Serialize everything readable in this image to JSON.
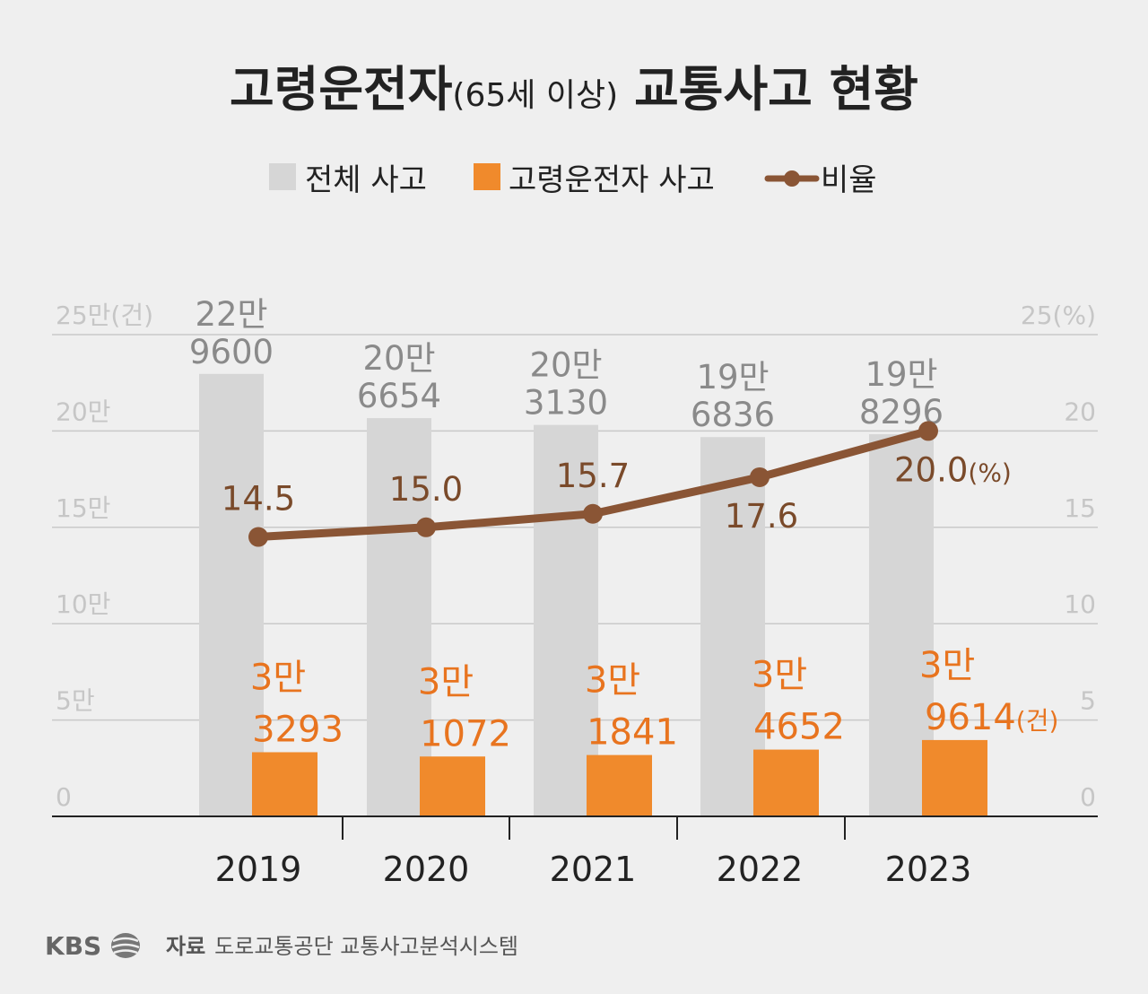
{
  "title": "고령운전자",
  "title_paren": "(65세 이상)",
  "title_rest": "교통사고 현황",
  "colors": {
    "total": "#d6d6d6",
    "elderly": "#f08a2c",
    "ratio": "#8a5535",
    "axis": "#222222",
    "grid": "#c9c9c9"
  },
  "chart_data": {
    "type": "bar",
    "categories": [
      "2019",
      "2020",
      "2021",
      "2022",
      "2023"
    ],
    "series": [
      {
        "name": "전체 사고",
        "type": "bar",
        "values": [
          229600,
          206654,
          203130,
          196836,
          198296
        ],
        "labels": [
          [
            "22만",
            "9600"
          ],
          [
            "20만",
            "6654"
          ],
          [
            "20만",
            "3130"
          ],
          [
            "19만",
            "6836"
          ],
          [
            "19만",
            "8296"
          ]
        ]
      },
      {
        "name": "고령운전자 사고",
        "type": "bar",
        "values": [
          33293,
          31072,
          31841,
          34652,
          39614
        ],
        "labels": [
          [
            "3만",
            "3293"
          ],
          [
            "3만",
            "1072"
          ],
          [
            "3만",
            "1841"
          ],
          [
            "3만",
            "4652"
          ],
          [
            "3만",
            "9614"
          ]
        ]
      },
      {
        "name": "비율",
        "type": "line",
        "axis": "right",
        "values": [
          14.5,
          15.0,
          15.7,
          17.6,
          20.0
        ],
        "labels": [
          "14.5",
          "15.0",
          "15.7",
          "17.6",
          "20.0"
        ]
      }
    ],
    "y_left": {
      "ticks": [
        "0",
        "5만",
        "10만",
        "15만",
        "20만",
        "25만"
      ],
      "unit": "(건)",
      "range": [
        0,
        250000
      ]
    },
    "y_right": {
      "ticks": [
        "0",
        "5",
        "10",
        "15",
        "20",
        "25"
      ],
      "unit": "(%)",
      "range": [
        0,
        25
      ]
    },
    "last_total_unit": "(건)",
    "last_ratio_unit": "(%)",
    "grid": true,
    "legend_position": "top"
  },
  "footer": {
    "logo": "KBS",
    "source_label": "자료",
    "source": "도로교통공단 교통사고분석시스템"
  }
}
